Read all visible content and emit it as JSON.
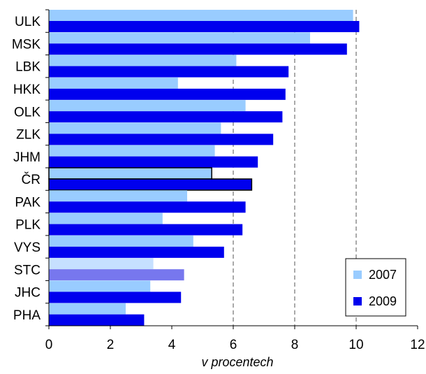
{
  "chart_data": {
    "type": "bar",
    "orientation": "horizontal",
    "categories": [
      "ULK",
      "MSK",
      "LBK",
      "HKK",
      "OLK",
      "ZLK",
      "JHM",
      "ČR",
      "PAK",
      "PLK",
      "VYS",
      "STC",
      "JHC",
      "PHA"
    ],
    "series": [
      {
        "name": "2007",
        "color": "#99ccff",
        "values": [
          9.9,
          8.5,
          6.1,
          4.2,
          6.4,
          5.6,
          5.4,
          5.3,
          4.5,
          3.7,
          4.7,
          3.4,
          3.3,
          2.5
        ]
      },
      {
        "name": "2009",
        "color": "#0000ee",
        "values": [
          10.1,
          9.7,
          7.8,
          7.7,
          7.6,
          7.3,
          6.8,
          6.6,
          6.4,
          6.3,
          5.7,
          4.4,
          4.3,
          3.1
        ]
      }
    ],
    "highlighted_categories": {
      "ČR": {
        "2007": "#99ccff",
        "2009": "#0000ee",
        "outline": "#000000"
      },
      "STC": {
        "2007": "#c6e0ff",
        "2009": "#7777ee"
      }
    },
    "xlabel": "v procentech",
    "xlim": [
      0,
      12
    ],
    "xticks": [
      0,
      2,
      4,
      6,
      8,
      10,
      12
    ],
    "grid": "vertical dashed at 6, 8, 10",
    "gridlines_at": [
      6,
      8,
      10
    ],
    "legend_position": "bottom-right"
  }
}
